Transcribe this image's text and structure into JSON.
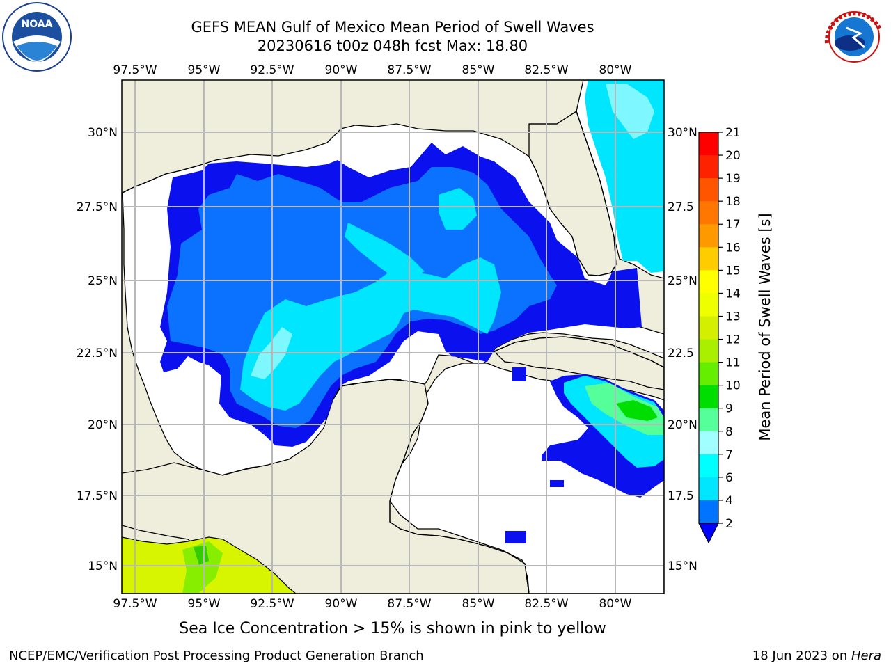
{
  "header": {
    "title_line1": "GEFS MEAN Gulf of Mexico Mean Period of Swell Waves",
    "title_line2": "20230616 t00z 048h fcst   Max: 18.80"
  },
  "logos": {
    "left": "NOAA",
    "right": "NATIONAL WEATHER SERVICE"
  },
  "map": {
    "lon_labels": [
      "97.5°W",
      "95°W",
      "92.5°W",
      "90°W",
      "87.5°W",
      "85°W",
      "82.5°W",
      "80°W"
    ],
    "lat_labels_left": [
      "30°N",
      "27.5°N",
      "25°N",
      "22.5°N",
      "20°N",
      "17.5°N",
      "15°N"
    ],
    "lat_labels_right": [
      "30°N",
      "27.5",
      "25°N",
      "22.5",
      "20°N",
      "17.5",
      "15°N"
    ],
    "land_color": "#efeedd",
    "ocean_color": "#ffffff"
  },
  "colorbar": {
    "label": "Mean Period of Swell Waves [s]",
    "ticks": [
      "21",
      "20",
      "19",
      "18",
      "17",
      "16",
      "15",
      "14",
      "13",
      "12",
      "11",
      "10",
      "9",
      "8",
      "7",
      "6",
      "4",
      "2"
    ],
    "colors": [
      "#0000ff",
      "#0073ff",
      "#00e6ff",
      "#00ffff",
      "#a0ffff",
      "#55ff99",
      "#00dd00",
      "#66ee00",
      "#aaee00",
      "#d4f000",
      "#eeff00",
      "#ffff00",
      "#ffcc00",
      "#ff9900",
      "#ff7700",
      "#ff5500",
      "#ff2200",
      "#ff0000"
    ]
  },
  "footer": {
    "ice_note": "Sea Ice Concentration > 15% is shown in pink to yellow",
    "credit": "NCEP/EMC/Verification Post Processing Product Generation Branch",
    "date_text": "18 Jun 2023 on ",
    "machine": "Hera"
  }
}
